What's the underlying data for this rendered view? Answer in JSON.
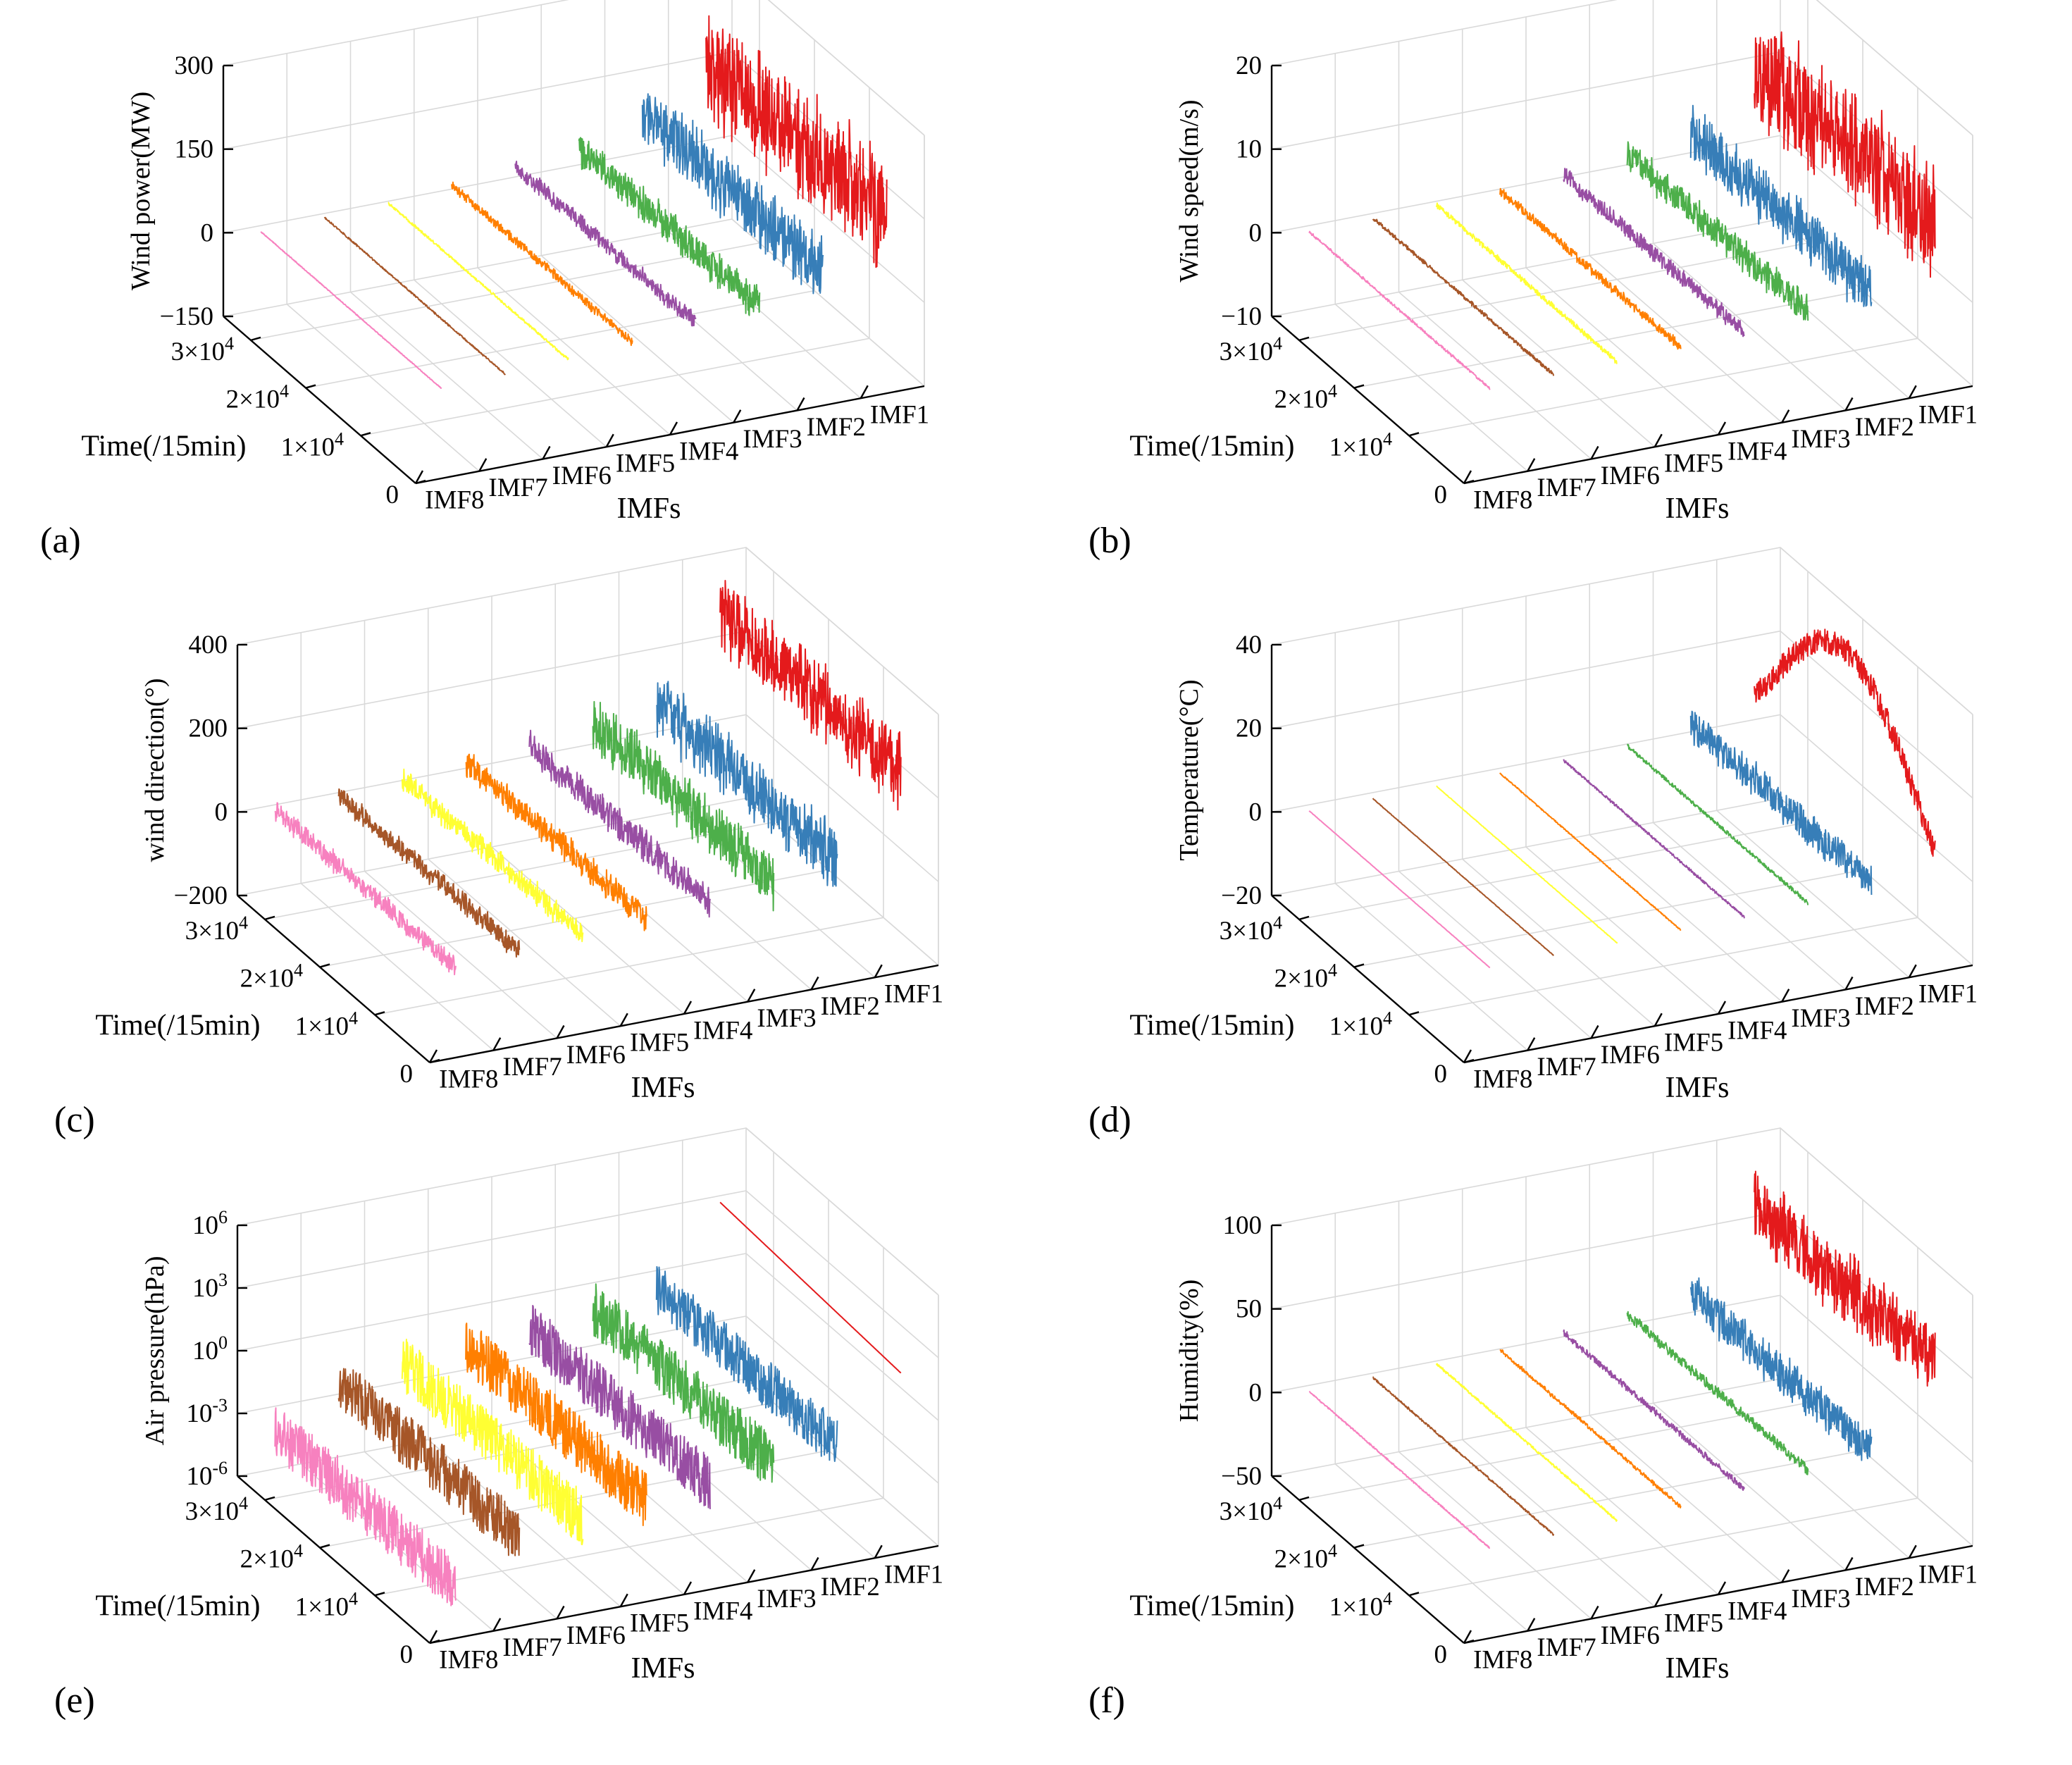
{
  "figure": {
    "series_colors": {
      "IMF1": "#e41a1c",
      "IMF2": "#377eb8",
      "IMF3": "#4daf4a",
      "IMF4": "#984ea3",
      "IMF5": "#ff7f00",
      "IMF6": "#ffff33",
      "IMF7": "#a65628",
      "IMF8": "#f781bf"
    }
  },
  "chart_data": [
    {
      "panel_label": "(a)",
      "type": "line",
      "projection": "3d",
      "xlabel": "IMFs",
      "ylabel": "Time(/15min)",
      "zlabel": "Wind power(MW)",
      "categories": [
        "IMF8",
        "IMF7",
        "IMF6",
        "IMF5",
        "IMF4",
        "IMF3",
        "IMF2",
        "IMF1"
      ],
      "time_ticks": [
        "0",
        "1×10^4",
        "2×10^4",
        "3×10^4"
      ],
      "time_range": [
        0,
        35000
      ],
      "zscale": "linear",
      "zlim": [
        -150,
        300
      ],
      "zticks": [
        "−150",
        "0",
        "150",
        "300"
      ],
      "zticks_values": [
        -150,
        0,
        150,
        300
      ],
      "grid": true,
      "series": [
        {
          "name": "IMF1",
          "center": 155,
          "amplitude": 120
        },
        {
          "name": "IMF2",
          "center": 80,
          "amplitude": 70
        },
        {
          "name": "IMF3",
          "center": 40,
          "amplitude": 40
        },
        {
          "name": "IMF4",
          "center": 30,
          "amplitude": 18
        },
        {
          "name": "IMF5",
          "center": 18,
          "amplitude": 10
        },
        {
          "name": "IMF6",
          "center": 8,
          "amplitude": 3
        },
        {
          "name": "IMF7",
          "center": 4,
          "amplitude": 2
        },
        {
          "name": "IMF8",
          "center": 0,
          "amplitude": 1
        }
      ]
    },
    {
      "panel_label": "(b)",
      "type": "line",
      "projection": "3d",
      "xlabel": "IMFs",
      "ylabel": "Time(/15min)",
      "zlabel": "Wind speed(m/s)",
      "categories": [
        "IMF8",
        "IMF7",
        "IMF6",
        "IMF5",
        "IMF4",
        "IMF3",
        "IMF2",
        "IMF1"
      ],
      "time_ticks": [
        "0",
        "1×10^4",
        "2×10^4",
        "3×10^4"
      ],
      "time_range": [
        0,
        35000
      ],
      "zscale": "linear",
      "zlim": [
        -10,
        20
      ],
      "zticks": [
        "−10",
        "0",
        "10",
        "20"
      ],
      "zticks_values": [
        -10,
        0,
        10,
        20
      ],
      "grid": true,
      "series": [
        {
          "name": "IMF1",
          "center": 10,
          "amplitude": 8
        },
        {
          "name": "IMF2",
          "center": 3,
          "amplitude": 4
        },
        {
          "name": "IMF3",
          "center": 2,
          "amplitude": 2.2
        },
        {
          "name": "IMF4",
          "center": 1,
          "amplitude": 1.2
        },
        {
          "name": "IMF5",
          "center": 0.6,
          "amplitude": 0.7
        },
        {
          "name": "IMF6",
          "center": 0.3,
          "amplitude": 0.4
        },
        {
          "name": "IMF7",
          "center": 0.2,
          "amplitude": 0.3
        },
        {
          "name": "IMF8",
          "center": 0,
          "amplitude": 0.2
        }
      ]
    },
    {
      "panel_label": "(c)",
      "type": "line",
      "projection": "3d",
      "xlabel": "IMFs",
      "ylabel": "Time(/15min)",
      "zlabel": "wind direction(°)",
      "categories": [
        "IMF8",
        "IMF7",
        "IMF6",
        "IMF5",
        "IMF4",
        "IMF3",
        "IMF2",
        "IMF1"
      ],
      "time_ticks": [
        "0",
        "1×10^4",
        "2×10^4",
        "3×10^4"
      ],
      "time_range": [
        0,
        35000
      ],
      "zscale": "linear",
      "zlim": [
        -200,
        400
      ],
      "zticks": [
        "−200",
        "0",
        "200",
        "400"
      ],
      "zticks_values": [
        -200,
        0,
        200,
        400
      ],
      "grid": true,
      "series": [
        {
          "name": "IMF1",
          "center": 270,
          "amplitude": 110
        },
        {
          "name": "IMF2",
          "center": 80,
          "amplitude": 90
        },
        {
          "name": "IMF3",
          "center": 60,
          "amplitude": 80
        },
        {
          "name": "IMF4",
          "center": 40,
          "amplitude": 45
        },
        {
          "name": "IMF5",
          "center": 30,
          "amplitude": 40
        },
        {
          "name": "IMF6",
          "center": 20,
          "amplitude": 35
        },
        {
          "name": "IMF7",
          "center": 10,
          "amplitude": 30
        },
        {
          "name": "IMF8",
          "center": 0,
          "amplitude": 30
        }
      ]
    },
    {
      "panel_label": "(d)",
      "type": "line",
      "projection": "3d",
      "xlabel": "IMFs",
      "ylabel": "Time(/15min)",
      "zlabel": "Temperature(°C)",
      "categories": [
        "IMF8",
        "IMF7",
        "IMF6",
        "IMF5",
        "IMF4",
        "IMF3",
        "IMF2",
        "IMF1"
      ],
      "time_ticks": [
        "0",
        "1×10^4",
        "2×10^4",
        "3×10^4"
      ],
      "time_range": [
        0,
        35000
      ],
      "zscale": "linear",
      "zlim": [
        -20,
        40
      ],
      "zticks": [
        "−20",
        "0",
        "20",
        "40"
      ],
      "zticks_values": [
        -20,
        0,
        20,
        40
      ],
      "grid": true,
      "series": [
        {
          "name": "IMF1",
          "center": 15,
          "amplitude": 3,
          "seasonal": true
        },
        {
          "name": "IMF2",
          "center": 3,
          "amplitude": 5
        },
        {
          "name": "IMF3",
          "center": 1,
          "amplitude": 0.6
        },
        {
          "name": "IMF4",
          "center": 0.5,
          "amplitude": 0.4
        },
        {
          "name": "IMF5",
          "center": 0.3,
          "amplitude": 0.2
        },
        {
          "name": "IMF6",
          "center": 0.1,
          "amplitude": 0.1
        },
        {
          "name": "IMF7",
          "center": 0.05,
          "amplitude": 0.1
        },
        {
          "name": "IMF8",
          "center": 0,
          "amplitude": 0.05
        }
      ]
    },
    {
      "panel_label": "(e)",
      "type": "line",
      "projection": "3d",
      "xlabel": "IMFs",
      "ylabel": "Time(/15min)",
      "zlabel": "Air pressure(hPa)",
      "categories": [
        "IMF8",
        "IMF7",
        "IMF6",
        "IMF5",
        "IMF4",
        "IMF3",
        "IMF2",
        "IMF1"
      ],
      "time_ticks": [
        "0",
        "1×10^4",
        "2×10^4",
        "3×10^4"
      ],
      "time_range": [
        0,
        35000
      ],
      "zscale": "log",
      "zlim": [
        1e-06,
        1000000.0
      ],
      "zticks": [
        "10^-6",
        "10^-3",
        "10^0",
        "10^3",
        "10^6"
      ],
      "zticks_values": [
        1e-06,
        0.001,
        1,
        1000.0,
        1000000.0
      ],
      "grid": true,
      "series": [
        {
          "name": "IMF1",
          "center": 1000,
          "amplitude": 0,
          "smooth": true
        },
        {
          "name": "IMF2",
          "center": 1.5,
          "amplitude": 1
        },
        {
          "name": "IMF3",
          "center": 0.8,
          "amplitude": 1.1
        },
        {
          "name": "IMF4",
          "center": 0.3,
          "amplitude": 1.1
        },
        {
          "name": "IMF5",
          "center": 0.2,
          "amplitude": 1.1
        },
        {
          "name": "IMF6",
          "center": 0.1,
          "amplitude": 1.1
        },
        {
          "name": "IMF7",
          "center": 0.05,
          "amplitude": 1.1
        },
        {
          "name": "IMF8",
          "center": 0.001,
          "amplitude": 1.1
        }
      ]
    },
    {
      "panel_label": "(f)",
      "type": "line",
      "projection": "3d",
      "xlabel": "IMFs",
      "ylabel": "Time(/15min)",
      "zlabel": "Humidity(%)",
      "categories": [
        "IMF8",
        "IMF7",
        "IMF6",
        "IMF5",
        "IMF4",
        "IMF3",
        "IMF2",
        "IMF1"
      ],
      "time_ticks": [
        "0",
        "1×10^4",
        "2×10^4",
        "3×10^4"
      ],
      "time_range": [
        0,
        35000
      ],
      "zscale": "linear",
      "zlim": [
        -50,
        100
      ],
      "zticks": [
        "−50",
        "0",
        "50",
        "100"
      ],
      "zticks_values": [
        -50,
        0,
        50,
        100
      ],
      "grid": true,
      "series": [
        {
          "name": "IMF1",
          "center": 60,
          "amplitude": 25
        },
        {
          "name": "IMF2",
          "center": 15,
          "amplitude": 15
        },
        {
          "name": "IMF3",
          "center": 10,
          "amplitude": 4
        },
        {
          "name": "IMF4",
          "center": 6,
          "amplitude": 2.5
        },
        {
          "name": "IMF5",
          "center": 3,
          "amplitude": 1.5
        },
        {
          "name": "IMF6",
          "center": 2,
          "amplitude": 1
        },
        {
          "name": "IMF7",
          "center": 1,
          "amplitude": 0.8
        },
        {
          "name": "IMF8",
          "center": 0,
          "amplitude": 0.6
        }
      ]
    }
  ]
}
